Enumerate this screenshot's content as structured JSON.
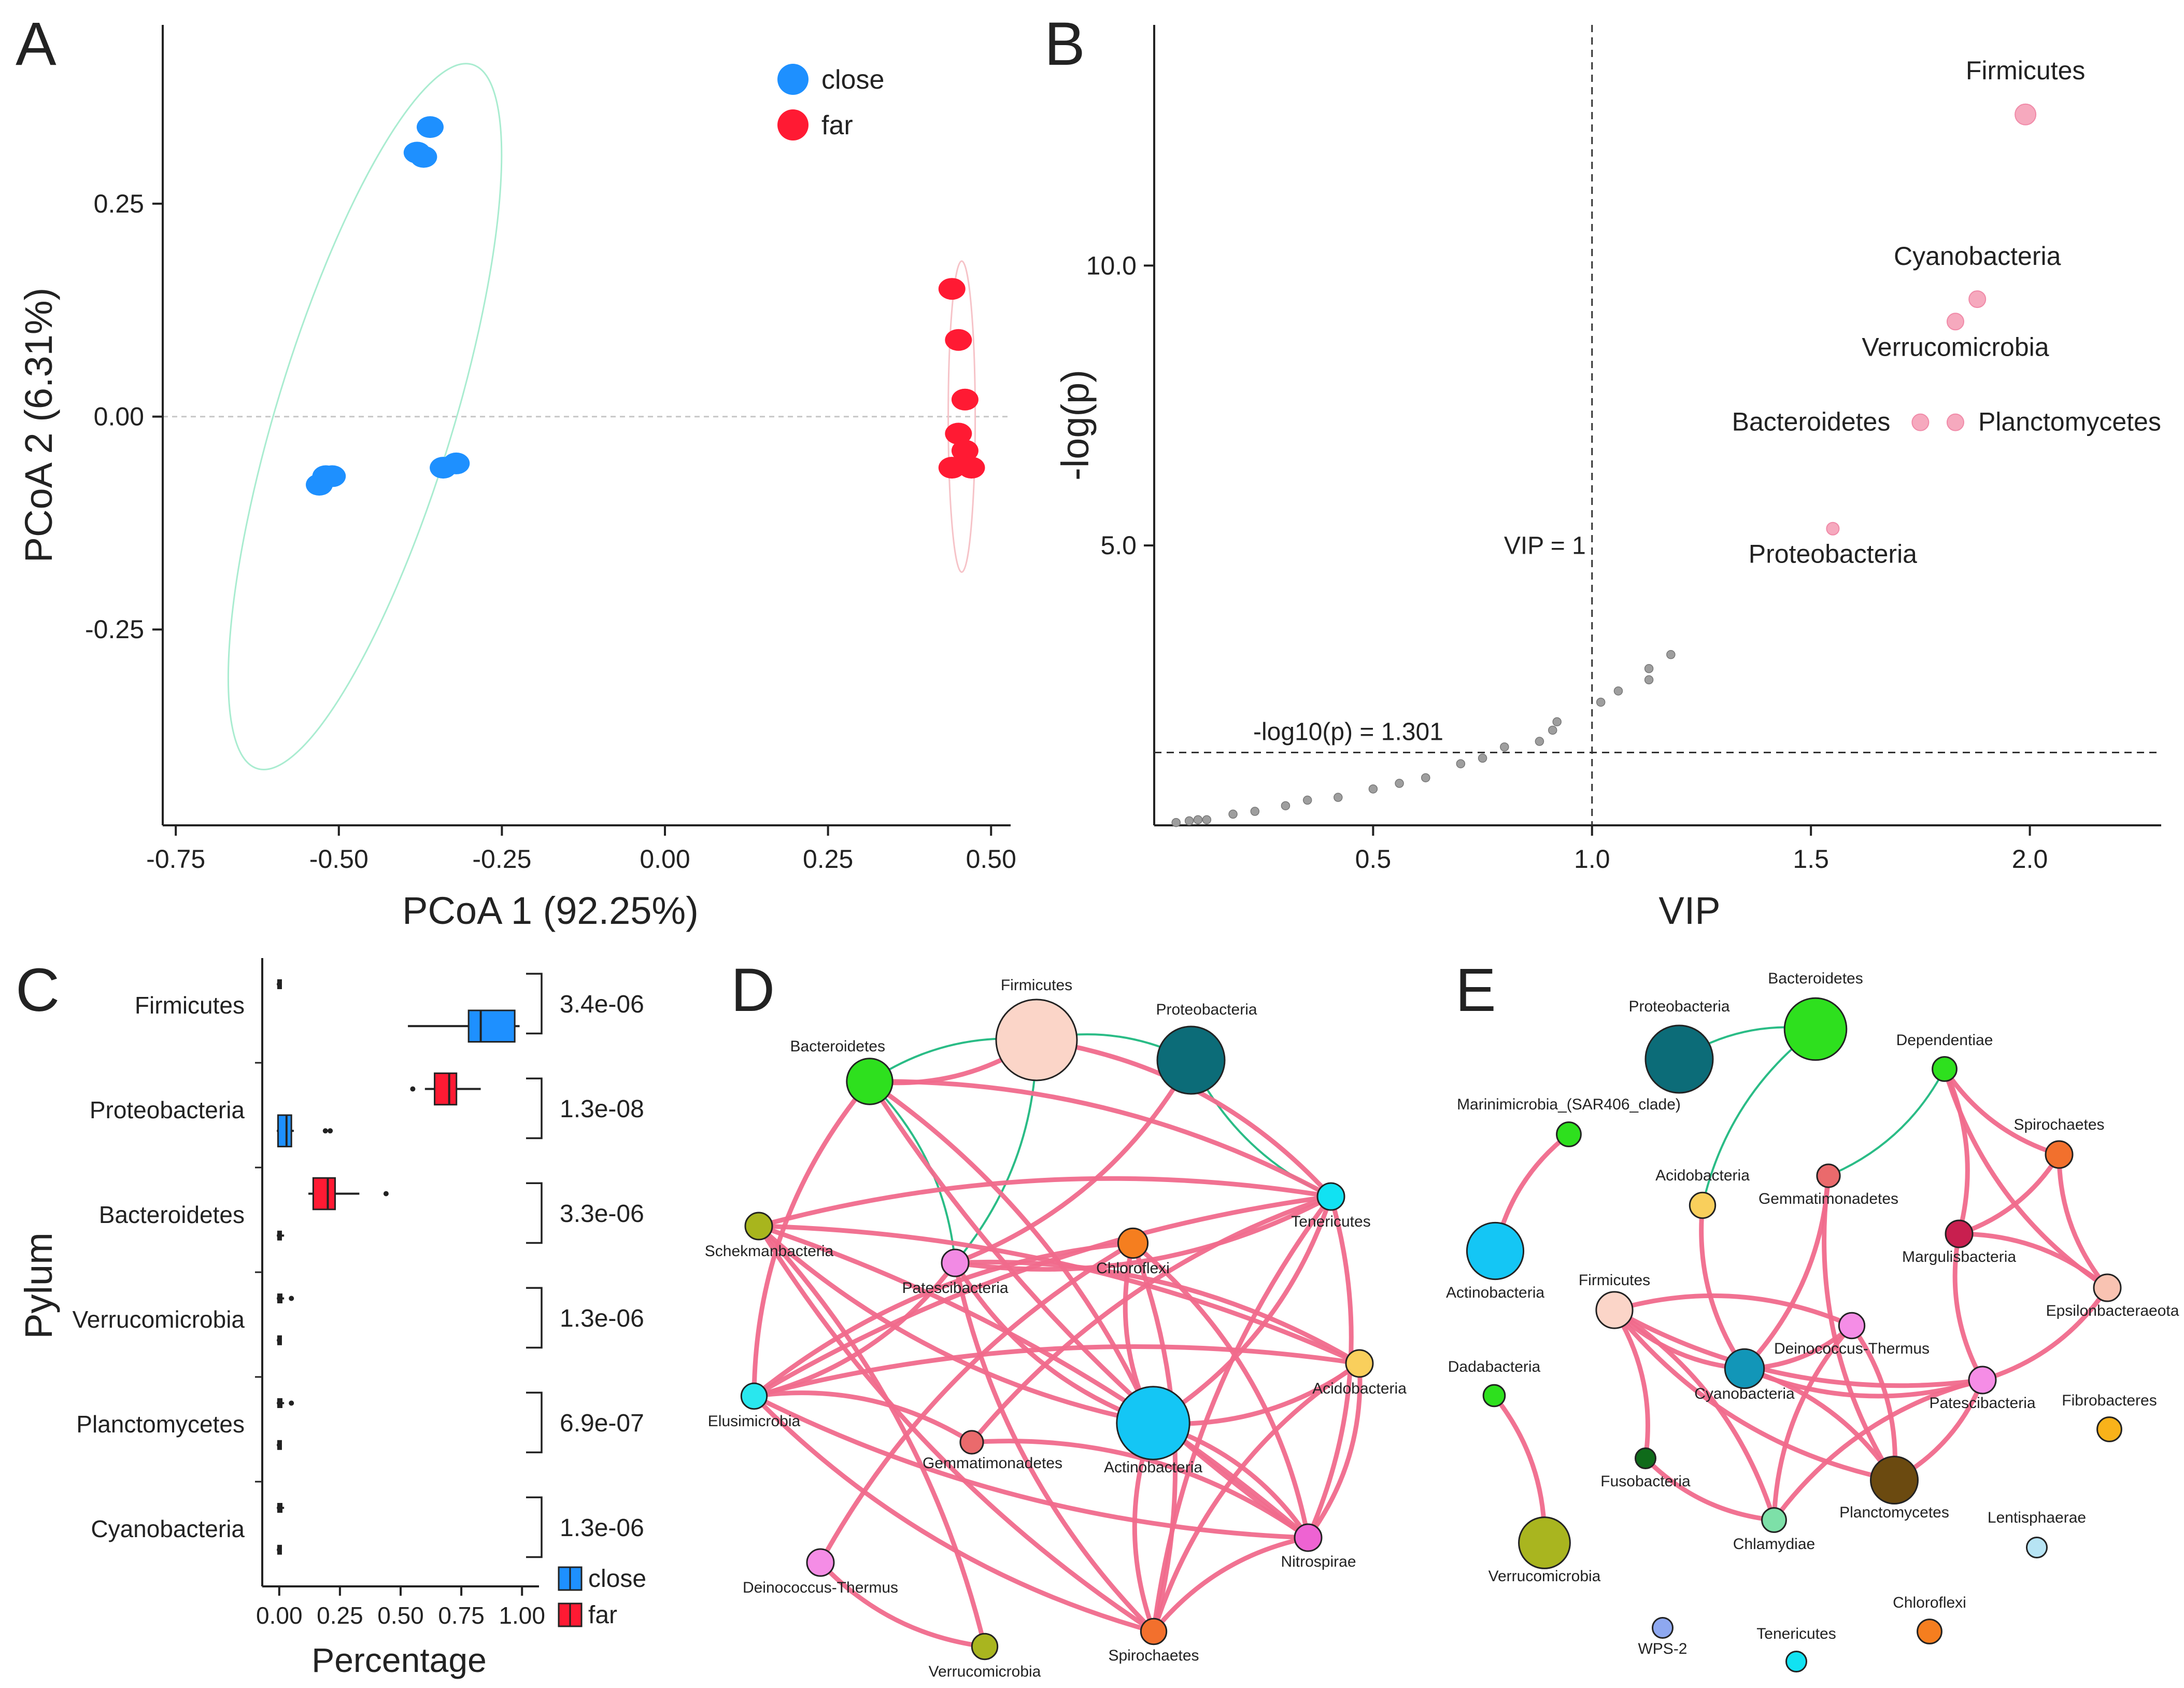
{
  "colors": {
    "close": "#1e90ff",
    "far": "#ff1a33",
    "pink_edge": "#f06a8c",
    "green_edge": "#1fb87f",
    "sig_point": "#f6a9be",
    "nonsig_point": "#9e9e9e",
    "threshold": "#ff0000"
  },
  "chart_data": [
    {
      "panel": "A",
      "type": "scatter",
      "xlabel": "PCoA 1 (92.25%)",
      "ylabel": "PCoA 2 (6.31%)",
      "xlim": [
        -0.77,
        0.53
      ],
      "ylim": [
        -0.48,
        0.46
      ],
      "xticks": [
        "-0.75",
        "-0.50",
        "-0.25",
        "0.00",
        "0.25",
        "0.50"
      ],
      "yticks": [
        "-0.25",
        "0.00",
        "0.25"
      ],
      "legend": [
        "close",
        "far"
      ],
      "series": [
        {
          "name": "close",
          "points": [
            [
              -0.36,
              0.34
            ],
            [
              -0.38,
              0.31
            ],
            [
              -0.37,
              0.305
            ],
            [
              -0.52,
              -0.07
            ],
            [
              -0.53,
              -0.08
            ],
            [
              -0.51,
              -0.07
            ],
            [
              -0.34,
              -0.06
            ],
            [
              -0.32,
              -0.055
            ]
          ]
        },
        {
          "name": "far",
          "points": [
            [
              0.44,
              0.15
            ],
            [
              0.45,
              0.09
            ],
            [
              0.46,
              0.02
            ],
            [
              0.45,
              -0.02
            ],
            [
              0.46,
              -0.04
            ],
            [
              0.44,
              -0.06
            ],
            [
              0.47,
              -0.06
            ]
          ]
        }
      ]
    },
    {
      "panel": "B",
      "type": "scatter",
      "xlabel": "VIP",
      "ylabel": "-log(p)",
      "xlim": [
        0.0,
        2.3
      ],
      "ylim": [
        0.0,
        14.3
      ],
      "xticks": [
        "0.5",
        "1.0",
        "1.5",
        "2.0"
      ],
      "yticks": [
        "5.0",
        "10.0"
      ],
      "vline_label": "VIP = 1",
      "hline_label": "-log10(p) = 1.301",
      "significant": [
        {
          "label": "Firmicutes",
          "x": 1.99,
          "y": 12.7
        },
        {
          "label": "Cyanobacteria",
          "x": 1.88,
          "y": 9.4
        },
        {
          "label": "Verrucomicrobia",
          "x": 1.83,
          "y": 9.0
        },
        {
          "label": "Bacteroidetes",
          "x": 1.75,
          "y": 7.2
        },
        {
          "label": "Planctomycetes",
          "x": 1.83,
          "y": 7.2
        },
        {
          "label": "Proteobacteria",
          "x": 1.55,
          "y": 5.3
        }
      ],
      "nonsignificant": [
        [
          0.05,
          0.05
        ],
        [
          0.08,
          0.08
        ],
        [
          0.1,
          0.1
        ],
        [
          0.12,
          0.1
        ],
        [
          0.18,
          0.2
        ],
        [
          0.23,
          0.25
        ],
        [
          0.3,
          0.35
        ],
        [
          0.35,
          0.45
        ],
        [
          0.42,
          0.5
        ],
        [
          0.5,
          0.65
        ],
        [
          0.56,
          0.75
        ],
        [
          0.62,
          0.85
        ],
        [
          0.7,
          1.1
        ],
        [
          0.75,
          1.2
        ],
        [
          0.8,
          1.4
        ],
        [
          0.88,
          1.5
        ],
        [
          0.91,
          1.7
        ],
        [
          0.92,
          1.85
        ],
        [
          1.02,
          2.2
        ],
        [
          1.06,
          2.4
        ],
        [
          1.13,
          2.6
        ],
        [
          1.13,
          2.8
        ],
        [
          1.18,
          3.05
        ]
      ]
    },
    {
      "panel": "C",
      "type": "box",
      "xlabel": "Percentage",
      "ylabel": "Pylum",
      "xlim": [
        -0.07,
        1.07
      ],
      "xticks": [
        "0.00",
        "0.25",
        "0.50",
        "0.75",
        "1.00"
      ],
      "legend": [
        "close",
        "far"
      ],
      "categories": [
        "Firmicutes",
        "Proteobacteria",
        "Bacteroidetes",
        "Verrucomicrobia",
        "Planctomycetes",
        "Cyanobacteria"
      ],
      "pvalues": [
        "3.4e-06",
        "1.3e-08",
        "3.3e-06",
        "1.3e-06",
        "6.9e-07",
        "1.3e-06"
      ],
      "boxes": [
        {
          "far": {
            "min": -0.01,
            "q1": -0.005,
            "median": -0.002,
            "q3": 0.0,
            "max": 0.005
          },
          "close": {
            "min": 0.53,
            "q1": 0.78,
            "median": 0.83,
            "q3": 0.97,
            "max": 0.99
          }
        },
        {
          "far": {
            "min": 0.6,
            "q1": 0.64,
            "median": 0.7,
            "q3": 0.73,
            "max": 0.83,
            "outliers": [
              0.55
            ]
          },
          "close": {
            "min": -0.01,
            "q1": -0.005,
            "median": 0.03,
            "q3": 0.05,
            "max": 0.06,
            "outliers": [
              0.19,
              0.21
            ]
          }
        },
        {
          "far": {
            "min": 0.12,
            "q1": 0.14,
            "median": 0.2,
            "q3": 0.23,
            "max": 0.33,
            "outliers": [
              0.44
            ]
          },
          "close": {
            "min": -0.01,
            "q1": -0.005,
            "median": 0.0,
            "q3": 0.005,
            "max": 0.02
          }
        },
        {
          "far": {
            "min": -0.01,
            "q1": -0.005,
            "median": 0.0,
            "q3": 0.01,
            "max": 0.02,
            "outliers": [
              0.05
            ]
          },
          "close": {
            "min": -0.01,
            "q1": -0.005,
            "median": -0.002,
            "q3": 0.0,
            "max": 0.005
          }
        },
        {
          "far": {
            "min": -0.01,
            "q1": -0.005,
            "median": 0.0,
            "q3": 0.01,
            "max": 0.02,
            "outliers": [
              0.05
            ]
          },
          "close": {
            "min": -0.01,
            "q1": -0.005,
            "median": -0.002,
            "q3": 0.0,
            "max": 0.005
          }
        },
        {
          "far": {
            "min": -0.01,
            "q1": -0.005,
            "median": 0.0,
            "q3": 0.01,
            "max": 0.02
          },
          "close": {
            "min": -0.01,
            "q1": -0.005,
            "median": -0.002,
            "q3": 0.0,
            "max": 0.005
          }
        }
      ]
    },
    {
      "panel": "D",
      "type": "network",
      "nodes": [
        {
          "id": "Firmicutes",
          "color": "#fbd5c8",
          "size": 3.0
        },
        {
          "id": "Proteobacteria",
          "color": "#0c6c78",
          "size": 2.5
        },
        {
          "id": "Bacteroidetes",
          "color": "#2ee01e",
          "size": 1.7
        },
        {
          "id": "Tenericutes",
          "color": "#11e2f2",
          "size": 1.0
        },
        {
          "id": "Schekmanbacteria",
          "color": "#a8b51d",
          "size": 1.0
        },
        {
          "id": "Patescibacteria",
          "color": "#f28ae4",
          "size": 1.0
        },
        {
          "id": "Chloroflexi",
          "color": "#f57e1f",
          "size": 1.1
        },
        {
          "id": "Acidobacteria",
          "color": "#f9cf5c",
          "size": 1.0
        },
        {
          "id": "Elusimicrobia",
          "color": "#29e7ee",
          "size": 0.95
        },
        {
          "id": "Gemmatimonadetes",
          "color": "#ea6a6c",
          "size": 0.85
        },
        {
          "id": "Actinobacteria",
          "color": "#14c6f5",
          "size": 2.7
        },
        {
          "id": "Deinococcus-Thermus",
          "color": "#f58de6",
          "size": 1.0
        },
        {
          "id": "Nitrospirae",
          "color": "#ee63d2",
          "size": 1.0
        },
        {
          "id": "Verrucomicrobia",
          "color": "#a9b51f",
          "size": 0.95
        },
        {
          "id": "Spirochaetes",
          "color": "#f2702d",
          "size": 0.95
        }
      ],
      "edges": [
        [
          "Firmicutes",
          "Proteobacteria",
          "green"
        ],
        [
          "Firmicutes",
          "Bacteroidetes",
          "green"
        ],
        [
          "Firmicutes",
          "Patescibacteria",
          "green"
        ],
        [
          "Proteobacteria",
          "Tenericutes",
          "green"
        ],
        [
          "Bacteroidetes",
          "Patescibacteria",
          "green"
        ],
        [
          "Bacteroidetes",
          "Firmicutes",
          "pink"
        ],
        [
          "Bacteroidetes",
          "Tenericutes",
          "pink"
        ],
        [
          "Bacteroidetes",
          "Elusimicrobia",
          "pink"
        ],
        [
          "Bacteroidetes",
          "Actinobacteria",
          "pink"
        ],
        [
          "Bacteroidetes",
          "Nitrospirae",
          "pink"
        ],
        [
          "Firmicutes",
          "Tenericutes",
          "pink"
        ],
        [
          "Tenericutes",
          "Schekmanbacteria",
          "pink"
        ],
        [
          "Tenericutes",
          "Patescibacteria",
          "pink"
        ],
        [
          "Tenericutes",
          "Elusimicrobia",
          "pink"
        ],
        [
          "Tenericutes",
          "Actinobacteria",
          "pink"
        ],
        [
          "Tenericutes",
          "Gemmatimonadetes",
          "pink"
        ],
        [
          "Tenericutes",
          "Nitrospirae",
          "pink"
        ],
        [
          "Tenericutes",
          "Spirochaetes",
          "pink"
        ],
        [
          "Schekmanbacteria",
          "Acidobacteria",
          "pink"
        ],
        [
          "Schekmanbacteria",
          "Actinobacteria",
          "pink"
        ],
        [
          "Schekmanbacteria",
          "Nitrospirae",
          "pink"
        ],
        [
          "Schekmanbacteria",
          "Spirochaetes",
          "pink"
        ],
        [
          "Schekmanbacteria",
          "Verrucomicrobia",
          "pink"
        ],
        [
          "Patescibacteria",
          "Actinobacteria",
          "pink"
        ],
        [
          "Patescibacteria",
          "Acidobacteria",
          "pink"
        ],
        [
          "Patescibacteria",
          "Spirochaetes",
          "pink"
        ],
        [
          "Patescibacteria",
          "Elusimicrobia",
          "pink"
        ],
        [
          "Chloroflexi",
          "Actinobacteria",
          "pink"
        ],
        [
          "Chloroflexi",
          "Spirochaetes",
          "pink"
        ],
        [
          "Chloroflexi",
          "Elusimicrobia",
          "pink"
        ],
        [
          "Chloroflexi",
          "Nitrospirae",
          "pink"
        ],
        [
          "Acidobacteria",
          "Elusimicrobia",
          "pink"
        ],
        [
          "Acidobacteria",
          "Actinobacteria",
          "pink"
        ],
        [
          "Acidobacteria",
          "Spirochaetes",
          "pink"
        ],
        [
          "Acidobacteria",
          "Nitrospirae",
          "pink"
        ],
        [
          "Elusimicrobia",
          "Nitrospirae",
          "pink"
        ],
        [
          "Elusimicrobia",
          "Gemmatimonadetes",
          "pink"
        ],
        [
          "Elusimicrobia",
          "Spirochaetes",
          "pink"
        ],
        [
          "Gemmatimonadetes",
          "Nitrospirae",
          "pink"
        ],
        [
          "Actinobacteria",
          "Spirochaetes",
          "pink"
        ],
        [
          "Actinobacteria",
          "Nitrospirae",
          "pink"
        ],
        [
          "Deinococcus-Thermus",
          "Verrucomicrobia",
          "pink"
        ],
        [
          "Deinococcus-Thermus",
          "Chloroflexi",
          "pink"
        ],
        [
          "Nitrospirae",
          "Spirochaetes",
          "pink"
        ],
        [
          "Proteobacteria",
          "Patescibacteria",
          "pink"
        ]
      ]
    },
    {
      "panel": "E",
      "type": "network",
      "nodes": [
        {
          "id": "Proteobacteria",
          "color": "#0c6c78",
          "size": 2.5
        },
        {
          "id": "Bacteroidetes",
          "color": "#2ee01e",
          "size": 2.3
        },
        {
          "id": "Dependentiae",
          "color": "#2ee01e",
          "size": 0.9
        },
        {
          "id": "Marinimicrobia_(SAR406_clade)",
          "color": "#2ee01e",
          "size": 0.9
        },
        {
          "id": "Spirochaetes",
          "color": "#f2702d",
          "size": 1.0
        },
        {
          "id": "Acidobacteria",
          "color": "#f9cf5c",
          "size": 0.95
        },
        {
          "id": "Gemmatimonadetes",
          "color": "#ea6a6c",
          "size": 0.85
        },
        {
          "id": "Margulisbacteria",
          "color": "#c81f4f",
          "size": 1.0
        },
        {
          "id": "Actinobacteria",
          "color": "#14c6f5",
          "size": 2.1
        },
        {
          "id": "Epsilonbacteraeota",
          "color": "#f9c3b2",
          "size": 1.0
        },
        {
          "id": "Firmicutes",
          "color": "#fbd5c8",
          "size": 1.35
        },
        {
          "id": "Deinococcus-Thermus",
          "color": "#f58de6",
          "size": 0.95
        },
        {
          "id": "Cyanobacteria",
          "color": "#1296b8",
          "size": 1.45
        },
        {
          "id": "Dadabacteria",
          "color": "#2ee01e",
          "size": 0.8
        },
        {
          "id": "Patescibacteria",
          "color": "#f58de6",
          "size": 1.0
        },
        {
          "id": "Fibrobacteres",
          "color": "#f9b21a",
          "size": 0.9
        },
        {
          "id": "Fusobacteria",
          "color": "#0f6b1a",
          "size": 0.75
        },
        {
          "id": "Planctomycetes",
          "color": "#6b4a10",
          "size": 1.75
        },
        {
          "id": "Chlamydiae",
          "color": "#7de0a8",
          "size": 0.9
        },
        {
          "id": "Lentisphaerae",
          "color": "#b7e4f4",
          "size": 0.75
        },
        {
          "id": "Verrucomicrobia",
          "color": "#a9b51f",
          "size": 1.9
        },
        {
          "id": "WPS-2",
          "color": "#8ea8f0",
          "size": 0.75
        },
        {
          "id": "Tenericutes",
          "color": "#11e2f2",
          "size": 0.75
        },
        {
          "id": "Chloroflexi",
          "color": "#f57e1f",
          "size": 0.9
        }
      ],
      "edges": [
        [
          "Proteobacteria",
          "Bacteroidetes",
          "green"
        ],
        [
          "Bacteroidetes",
          "Acidobacteria",
          "green"
        ],
        [
          "Dependentiae",
          "Gemmatimonadetes",
          "green"
        ],
        [
          "Dependentiae",
          "Spirochaetes",
          "pink"
        ],
        [
          "Dependentiae",
          "Margulisbacteria",
          "pink"
        ],
        [
          "Dependentiae",
          "Epsilonbacteraeota",
          "pink"
        ],
        [
          "Spirochaetes",
          "Margulisbacteria",
          "pink"
        ],
        [
          "Spirochaetes",
          "Epsilonbacteraeota",
          "pink"
        ],
        [
          "Margulisbacteria",
          "Epsilonbacteraeota",
          "pink"
        ],
        [
          "Margulisbacteria",
          "Patescibacteria",
          "pink"
        ],
        [
          "Epsilonbacteraeota",
          "Patescibacteria",
          "pink"
        ],
        [
          "Marinimicrobia_(SAR406_clade)",
          "Actinobacteria",
          "pink"
        ],
        [
          "Dadabacteria",
          "Verrucomicrobia",
          "pink"
        ],
        [
          "Firmicutes",
          "Cyanobacteria",
          "pink"
        ],
        [
          "Firmicutes",
          "Deinococcus-Thermus",
          "pink"
        ],
        [
          "Firmicutes",
          "Patescibacteria",
          "pink"
        ],
        [
          "Firmicutes",
          "Fusobacteria",
          "pink"
        ],
        [
          "Firmicutes",
          "Planctomycetes",
          "pink"
        ],
        [
          "Firmicutes",
          "Chlamydiae",
          "pink"
        ],
        [
          "Acidobacteria",
          "Cyanobacteria",
          "pink"
        ],
        [
          "Gemmatimonadetes",
          "Cyanobacteria",
          "pink"
        ],
        [
          "Gemmatimonadetes",
          "Planctomycetes",
          "pink"
        ],
        [
          "Deinococcus-Thermus",
          "Cyanobacteria",
          "pink"
        ],
        [
          "Deinococcus-Thermus",
          "Chlamydiae",
          "pink"
        ],
        [
          "Deinococcus-Thermus",
          "Planctomycetes",
          "pink"
        ],
        [
          "Cyanobacteria",
          "Patescibacteria",
          "pink"
        ],
        [
          "Cyanobacteria",
          "Planctomycetes",
          "pink"
        ],
        [
          "Patescibacteria",
          "Chlamydiae",
          "pink"
        ],
        [
          "Patescibacteria",
          "Planctomycetes",
          "pink"
        ],
        [
          "Fusobacteria",
          "Chlamydiae",
          "pink"
        ]
      ]
    }
  ]
}
